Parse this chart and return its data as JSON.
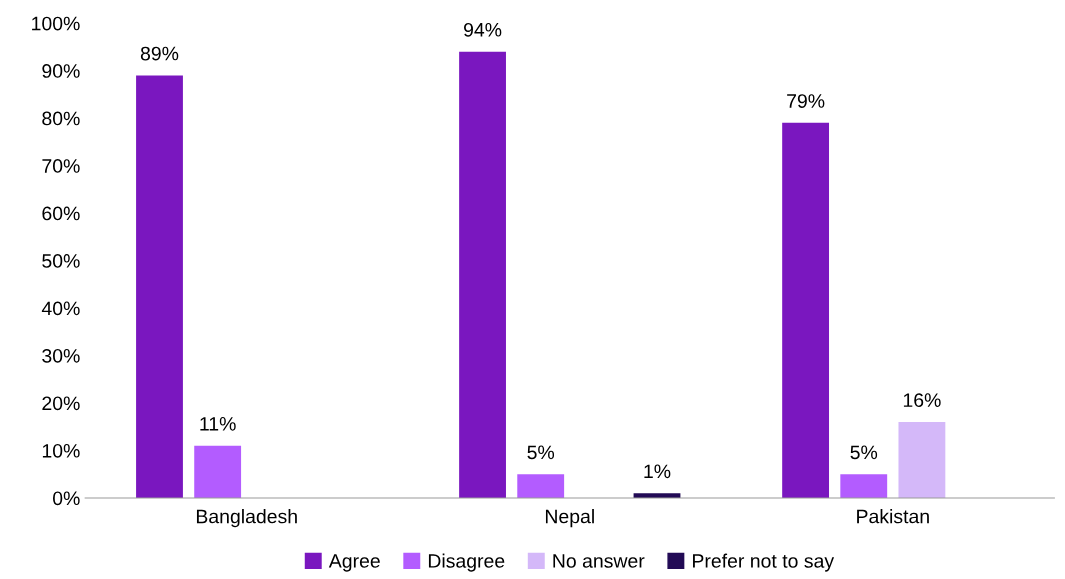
{
  "chart_data": {
    "type": "bar",
    "categories": [
      "Bangladesh",
      "Nepal",
      "Pakistan"
    ],
    "series": [
      {
        "name": "Agree",
        "color": "#7a17bf",
        "values": [
          89,
          94,
          79
        ],
        "value_labels": [
          "89%",
          "94%",
          "79%"
        ]
      },
      {
        "name": "Disagree",
        "color": "#b35cff",
        "values": [
          11,
          5,
          5
        ],
        "value_labels": [
          "11%",
          "5%",
          "5%"
        ]
      },
      {
        "name": "No answer",
        "color": "#d4b8f9",
        "values": [
          null,
          null,
          16
        ],
        "value_labels": [
          null,
          null,
          "16%"
        ]
      },
      {
        "name": "Prefer not to say",
        "color": "#220a55",
        "values": [
          null,
          1,
          null
        ],
        "value_labels": [
          null,
          "1%",
          null
        ]
      }
    ],
    "ylim": [
      0,
      100
    ],
    "yticks": [
      {
        "value": 0,
        "label": "0%"
      },
      {
        "value": 10,
        "label": "10%"
      },
      {
        "value": 20,
        "label": "20%"
      },
      {
        "value": 30,
        "label": "30%"
      },
      {
        "value": 40,
        "label": "40%"
      },
      {
        "value": 50,
        "label": "50%"
      },
      {
        "value": 60,
        "label": "60%"
      },
      {
        "value": 70,
        "label": "70%"
      },
      {
        "value": 80,
        "label": "80%"
      },
      {
        "value": 90,
        "label": "90%"
      },
      {
        "value": 100,
        "label": "100%"
      }
    ],
    "legend": "bottom"
  }
}
